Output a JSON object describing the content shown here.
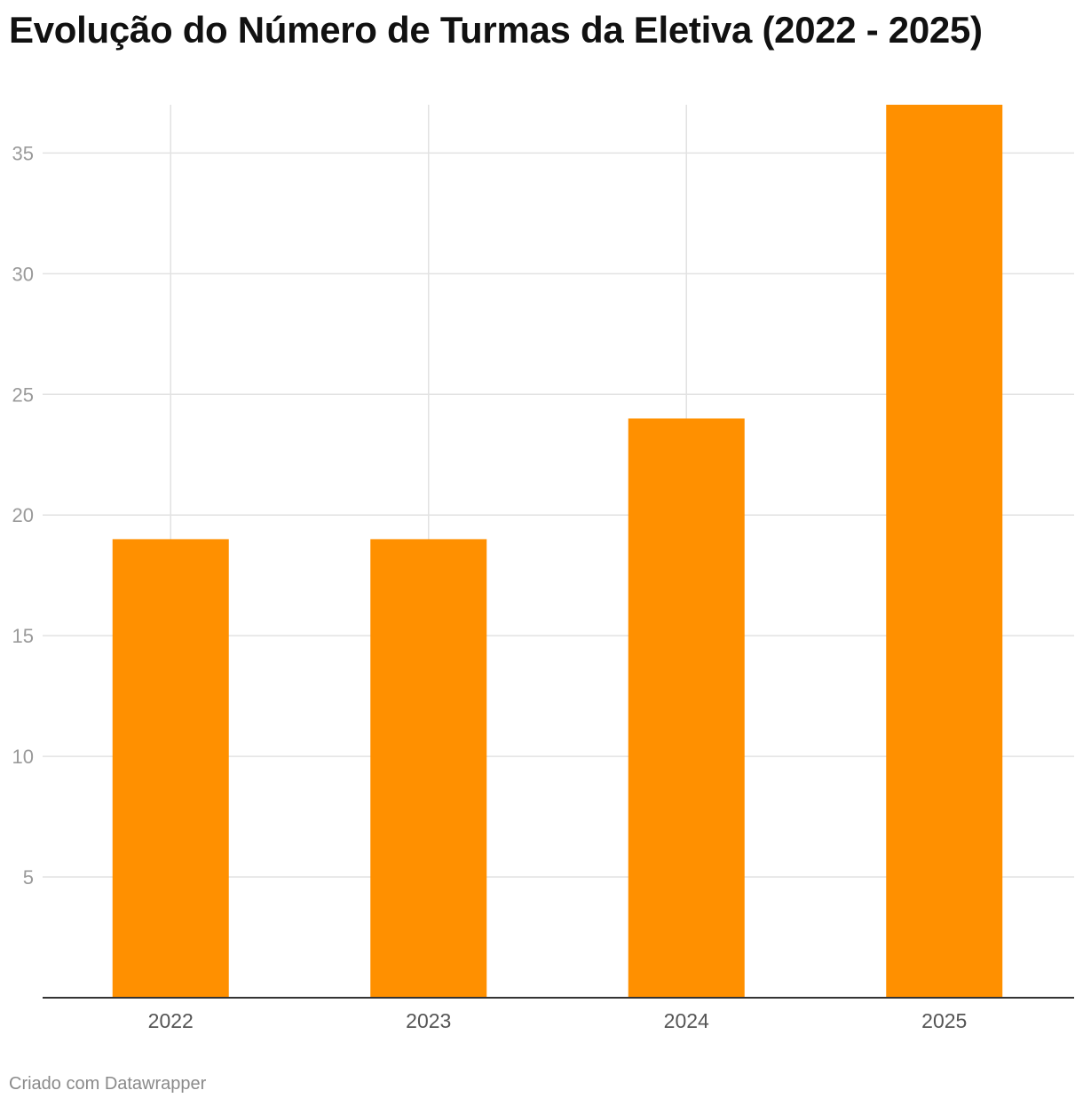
{
  "chart_data": {
    "type": "bar",
    "title": "Evolução do Número de Turmas da Eletiva (2022 - 2025)",
    "categories": [
      "2022",
      "2023",
      "2024",
      "2025"
    ],
    "values": [
      19,
      19,
      24,
      37
    ],
    "y_ticks": [
      5,
      10,
      15,
      20,
      25,
      30,
      35
    ],
    "ylim": [
      0,
      37
    ],
    "grid": true,
    "bar_color": "#ff9000",
    "grid_color": "#e2e2e2",
    "axis_color": "#333333"
  },
  "footer": {
    "credit": "Criado com Datawrapper"
  }
}
